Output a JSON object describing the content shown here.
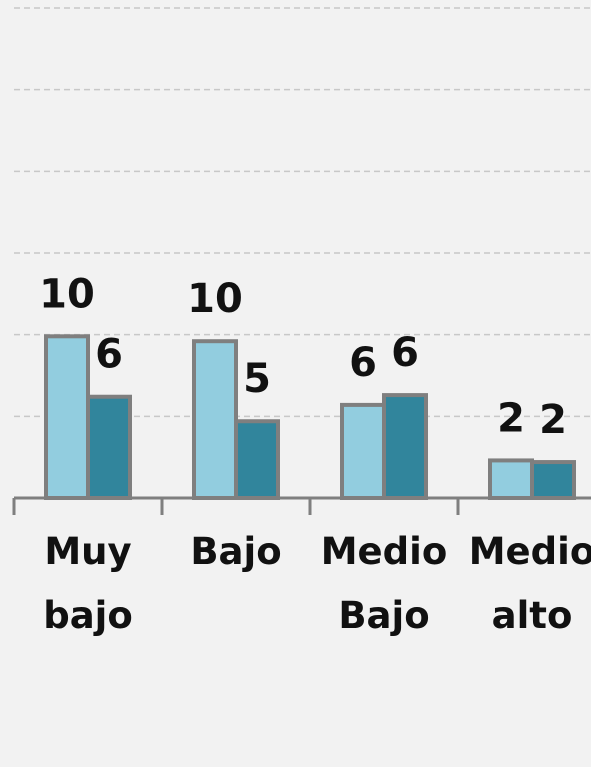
{
  "chart_data": {
    "type": "bar",
    "categories": [
      "Muy bajo",
      "Bajo",
      "Medio Bajo",
      "Medio alto"
    ],
    "series": [
      {
        "color": "#92cddf",
        "values": [
          9.9,
          9.6,
          5.7,
          2.3
        ],
        "value_labels": [
          "10",
          "10",
          "6",
          "2"
        ]
      },
      {
        "color": "#31859c",
        "values": [
          6.2,
          4.7,
          6.3,
          2.2
        ],
        "value_labels": [
          "6",
          "5",
          "6",
          "2"
        ]
      }
    ],
    "ylim": [
      0,
      30
    ],
    "yticks": [
      0,
      5,
      10,
      15,
      20,
      25,
      30
    ],
    "grid": true
  }
}
